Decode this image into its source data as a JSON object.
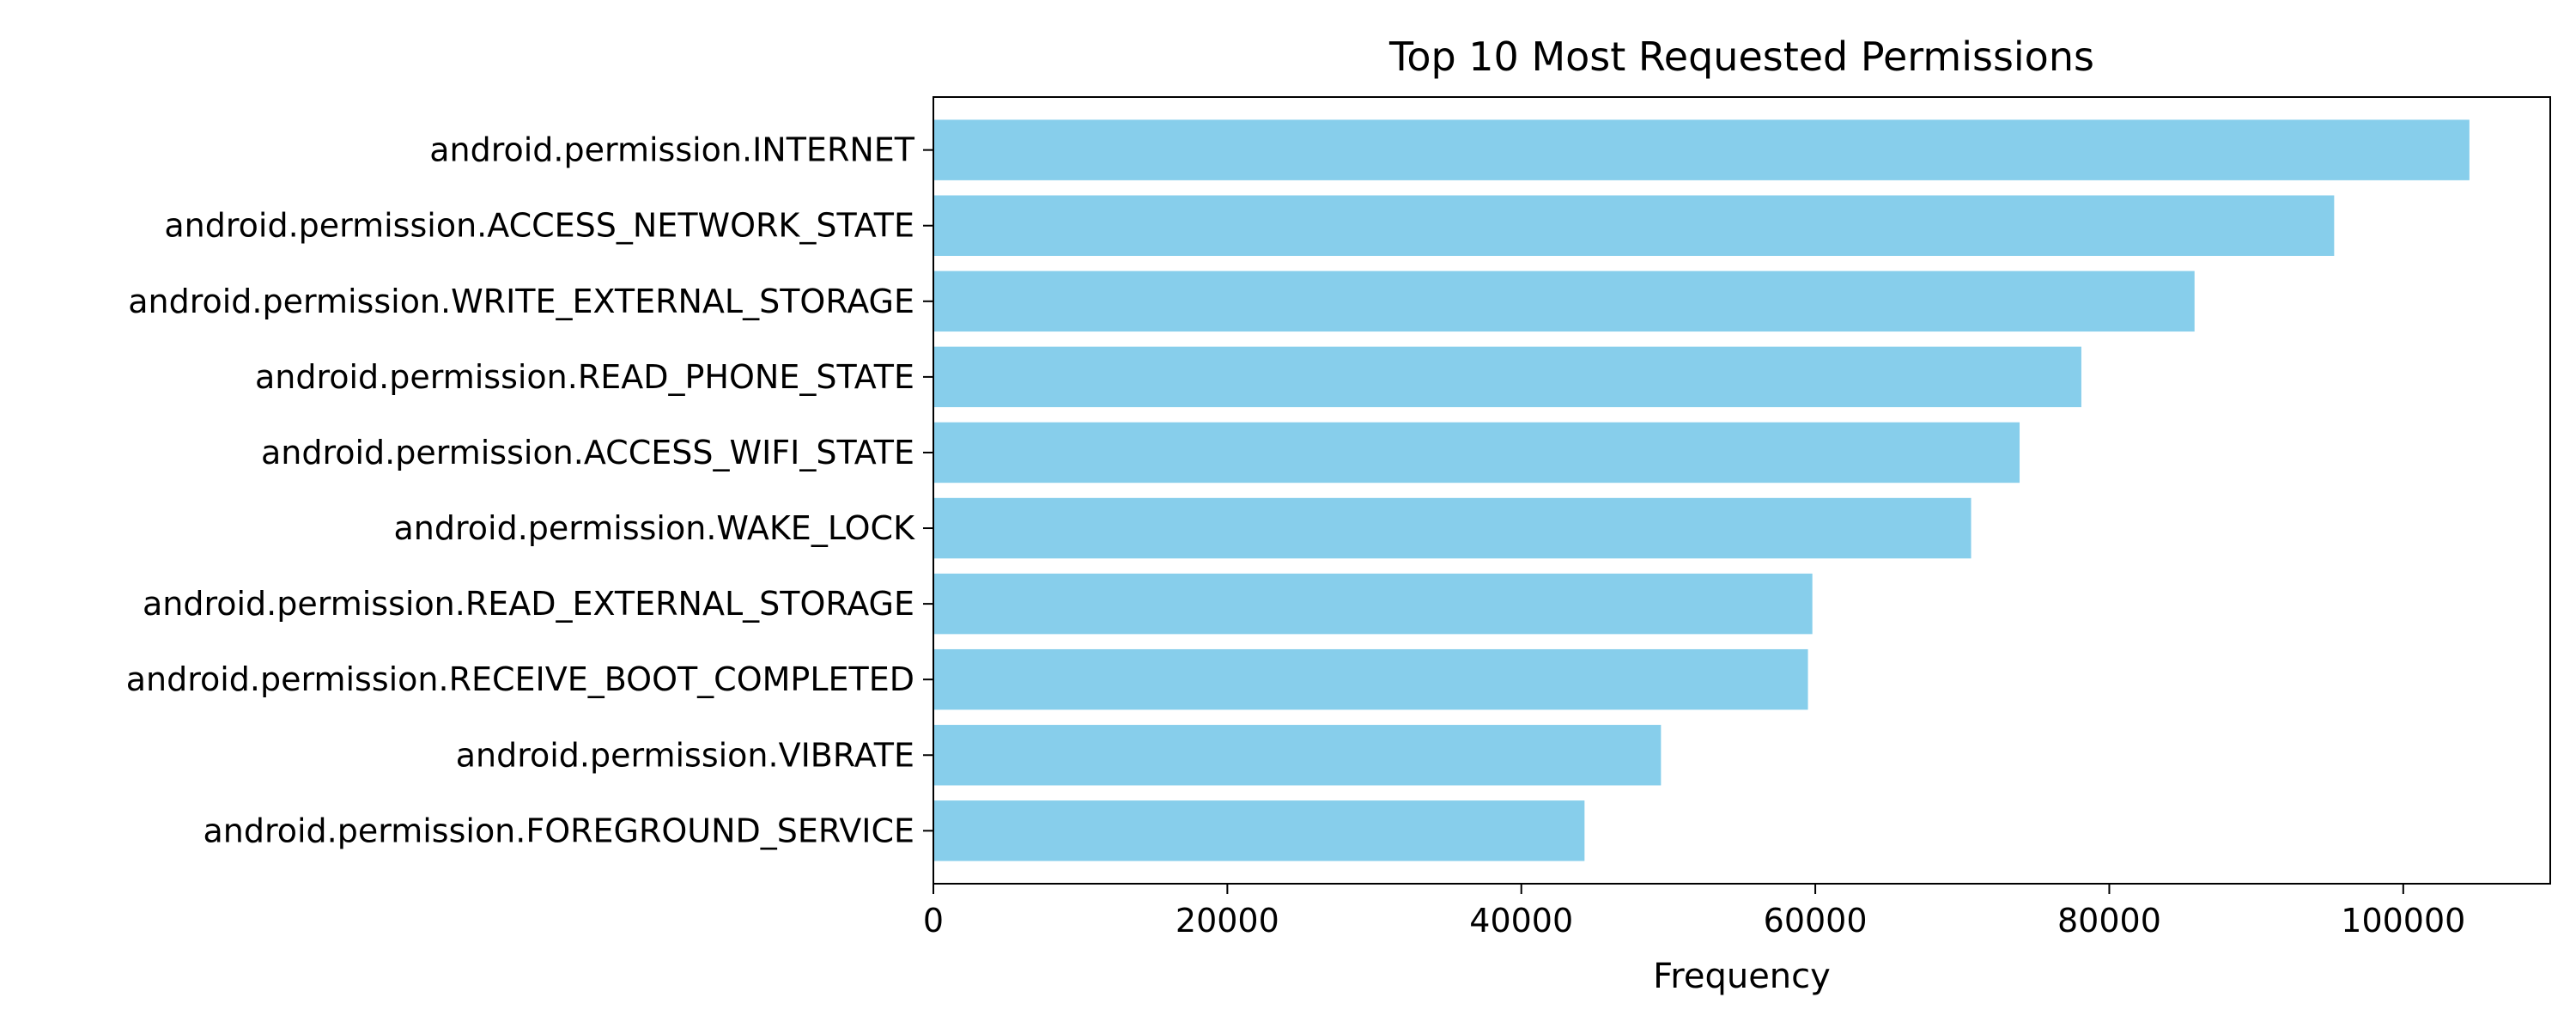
{
  "chart_data": {
    "type": "bar",
    "orientation": "horizontal",
    "title": "Top 10 Most Requested Permissions",
    "xlabel": "Frequency",
    "ylabel": "",
    "categories": [
      "android.permission.INTERNET",
      "android.permission.ACCESS_NETWORK_STATE",
      "android.permission.WRITE_EXTERNAL_STORAGE",
      "android.permission.READ_PHONE_STATE",
      "android.permission.ACCESS_WIFI_STATE",
      "android.permission.WAKE_LOCK",
      "android.permission.READ_EXTERNAL_STORAGE",
      "android.permission.RECEIVE_BOOT_COMPLETED",
      "android.permission.VIBRATE",
      "android.permission.FOREGROUND_SERVICE"
    ],
    "values": [
      104500,
      95300,
      85800,
      78100,
      73900,
      70600,
      59800,
      59500,
      49500,
      44300
    ],
    "xlim": [
      0,
      110000
    ],
    "xticks": [
      0,
      20000,
      40000,
      60000,
      80000,
      100000
    ],
    "xtick_labels": [
      "0",
      "20000",
      "40000",
      "60000",
      "80000",
      "100000"
    ],
    "grid": false,
    "legend": "none",
    "bar_color": "#87ceeb"
  }
}
